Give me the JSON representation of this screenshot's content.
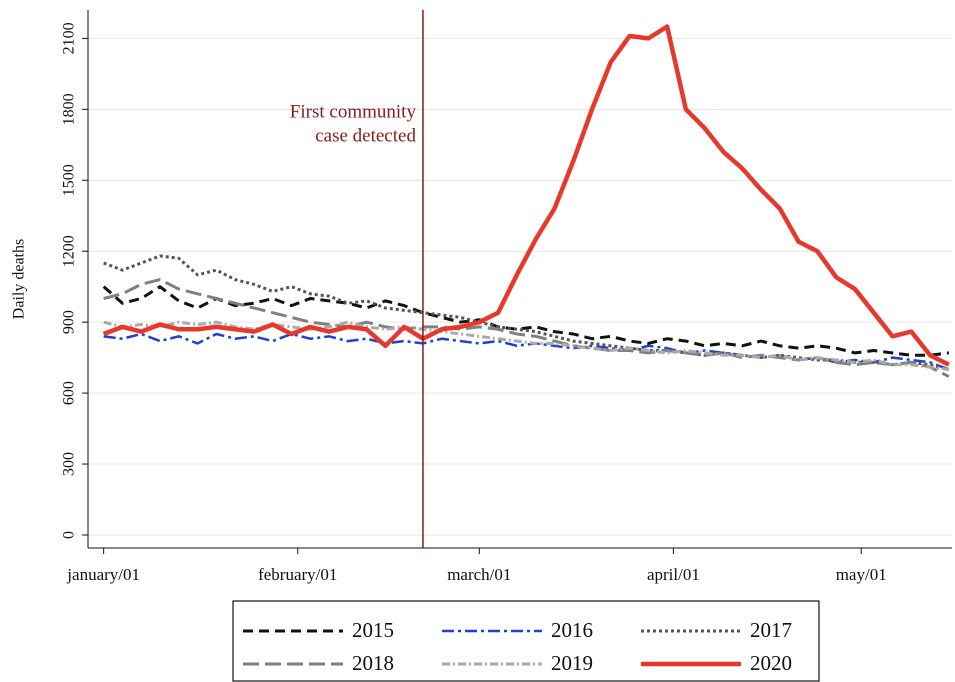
{
  "chart_data": {
    "type": "line",
    "y_label": "Daily deaths",
    "x": [
      0,
      3,
      6,
      9,
      12,
      15,
      18,
      21,
      24,
      27,
      30,
      33,
      36,
      39,
      42,
      45,
      48,
      51,
      54,
      57,
      60,
      63,
      66,
      69,
      72,
      75,
      78,
      81,
      84,
      87,
      90,
      93,
      96,
      99,
      102,
      105,
      108,
      111,
      114,
      117,
      120,
      123,
      126,
      129,
      132,
      135
    ],
    "xlim": [
      -2.5,
      135.5
    ],
    "xticks": [
      {
        "value": 0,
        "label": "january/01"
      },
      {
        "value": 31,
        "label": "february/01"
      },
      {
        "value": 60,
        "label": "march/01"
      },
      {
        "value": 91,
        "label": "april/01"
      },
      {
        "value": 121,
        "label": "may/01"
      }
    ],
    "ylim": [
      -55,
      2220
    ],
    "yticks": [
      0,
      300,
      600,
      900,
      1200,
      1500,
      1800,
      2100
    ],
    "grid": true,
    "legend_position": "bottom",
    "vline": {
      "x": 51,
      "color": "#8b1a1a",
      "label": [
        "First community",
        "case detected"
      ]
    },
    "series": [
      {
        "name": "2015",
        "color": "#111111",
        "dash": "10,6",
        "width": 3,
        "values": [
          1050,
          980,
          1000,
          1050,
          990,
          960,
          1000,
          970,
          980,
          1000,
          970,
          1000,
          990,
          980,
          960,
          990,
          970,
          940,
          920,
          900,
          910,
          880,
          870,
          880,
          860,
          850,
          830,
          840,
          820,
          810,
          830,
          820,
          800,
          810,
          800,
          820,
          800,
          790,
          800,
          790,
          770,
          780,
          770,
          760,
          760,
          770
        ]
      },
      {
        "name": "2016",
        "color": "#1f3fd6",
        "dash": "12,4,3,4",
        "width": 2.5,
        "values": [
          840,
          830,
          850,
          820,
          840,
          810,
          850,
          830,
          840,
          820,
          850,
          830,
          840,
          820,
          830,
          810,
          820,
          810,
          830,
          820,
          810,
          820,
          800,
          810,
          800,
          790,
          800,
          790,
          780,
          800,
          790,
          770,
          780,
          770,
          760,
          750,
          760,
          740,
          750,
          730,
          740,
          730,
          750,
          740,
          730,
          700
        ]
      },
      {
        "name": "2017",
        "color": "#555555",
        "dash": "3,3",
        "width": 3,
        "values": [
          1150,
          1120,
          1150,
          1180,
          1170,
          1100,
          1120,
          1080,
          1060,
          1030,
          1050,
          1020,
          1010,
          980,
          990,
          960,
          950,
          940,
          930,
          920,
          900,
          880,
          870,
          860,
          840,
          820,
          810,
          800,
          790,
          780,
          780,
          770,
          760,
          770,
          760,
          750,
          760,
          750,
          740,
          740,
          730,
          730,
          720,
          730,
          720,
          700
        ]
      },
      {
        "name": "2018",
        "color": "#808080",
        "dash": "16,6",
        "width": 3,
        "values": [
          1000,
          1020,
          1060,
          1080,
          1040,
          1020,
          1000,
          980,
          960,
          940,
          920,
          900,
          890,
          880,
          900,
          880,
          870,
          880,
          880,
          870,
          880,
          870,
          850,
          840,
          820,
          800,
          790,
          780,
          780,
          770,
          780,
          770,
          760,
          770,
          750,
          760,
          750,
          740,
          750,
          730,
          720,
          730,
          720,
          730,
          710,
          670
        ]
      },
      {
        "name": "2019",
        "color": "#aaaaaa",
        "dash": "8,3,2,3",
        "width": 3,
        "values": [
          900,
          880,
          890,
          880,
          900,
          890,
          900,
          880,
          870,
          890,
          880,
          870,
          880,
          900,
          880,
          870,
          880,
          870,
          860,
          850,
          840,
          830,
          820,
          810,
          810,
          800,
          790,
          780,
          790,
          780,
          770,
          780,
          770,
          760,
          760,
          750,
          760,
          740,
          750,
          740,
          730,
          740,
          720,
          720,
          710,
          700
        ]
      },
      {
        "name": "2020",
        "color": "#e8382b",
        "dash": "none",
        "width": 4.5,
        "values": [
          850,
          880,
          860,
          890,
          870,
          870,
          880,
          870,
          860,
          890,
          850,
          880,
          860,
          880,
          870,
          800,
          880,
          830,
          870,
          880,
          900,
          940,
          1100,
          1250,
          1380,
          1580,
          1800,
          2000,
          2110,
          2100,
          2150,
          1800,
          1720,
          1620,
          1550,
          1460,
          1380,
          1240,
          1200,
          1090,
          1040,
          940,
          840,
          860,
          760,
          720
        ]
      }
    ]
  }
}
